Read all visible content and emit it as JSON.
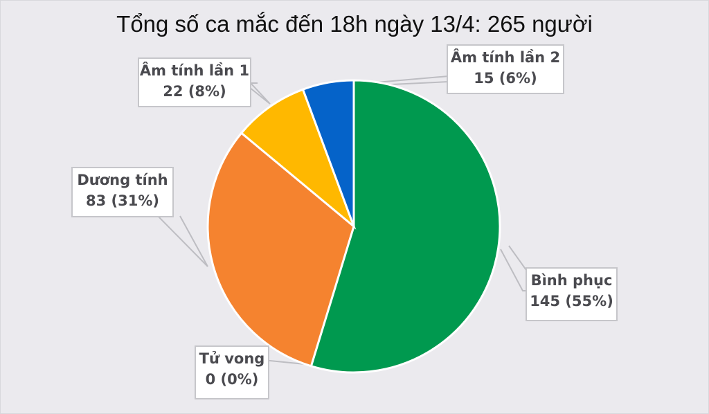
{
  "chart_data": {
    "type": "pie",
    "title": "Tổng số ca mắc đến 18h ngày 13/4: 265 người",
    "total": 265,
    "categories": [
      "Bình phục",
      "Tử vong",
      "Dương tính",
      "Âm tính lần 1",
      "Âm tính lần 2"
    ],
    "values": [
      145,
      0,
      83,
      22,
      15
    ],
    "percents": [
      "55%",
      "0%",
      "31%",
      "8%",
      "6%"
    ],
    "colors": [
      "#00994f",
      "#f0f0f0",
      "#f5832f",
      "#ffb800",
      "#0563c9"
    ],
    "labels": [
      {
        "name": "Bình phục",
        "value": "145 (55%)"
      },
      {
        "name": "Tử vong",
        "value": "0 (0%)"
      },
      {
        "name": "Dương tính",
        "value": "83 (31%)"
      },
      {
        "name": "Âm tính lần 1",
        "value": "22 (8%)"
      },
      {
        "name": "Âm tính lần 2",
        "value": "15 (6%)"
      }
    ],
    "legend": "none (callout data labels)",
    "start_angle": "12 o'clock, clockwise"
  }
}
